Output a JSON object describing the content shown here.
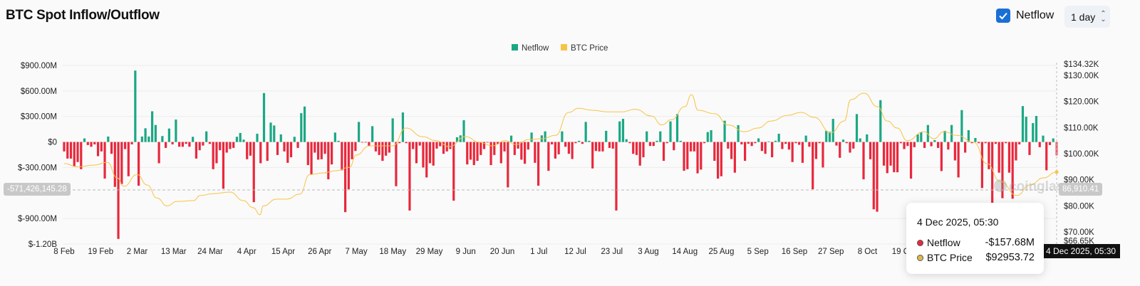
{
  "header": {
    "title": "BTC Spot Inflow/Outflow",
    "netflow_checkbox_label": "Netflow",
    "netflow_checked": true,
    "interval_value": "1 day"
  },
  "colors": {
    "inflow": "#1ba784",
    "outflow": "#e8283c",
    "price": "#f6c445",
    "checkbox": "#1a6fd6"
  },
  "watermark": "coinglass",
  "crosshair": {
    "left_value": "-571,426,145.28",
    "right_value": "86,910.41",
    "x_value": "4 Dec 2025, 05:30"
  },
  "tooltip": {
    "date": "4 Dec 2025, 05:30",
    "rows": [
      {
        "label": "Netflow",
        "value": "-$157.68M",
        "color": "#e8283c"
      },
      {
        "label": "BTC Price",
        "value": "$92953.72",
        "color": "#e0b94a"
      }
    ]
  },
  "chart_data": {
    "type": "bar+line",
    "legend": [
      {
        "name": "Netflow",
        "color": "#1ba784"
      },
      {
        "name": "BTC Price",
        "color": "#f6c445"
      }
    ],
    "legend_position": "top-center",
    "grid": true,
    "x_range": [
      "2025-02-08",
      "2025-12-04"
    ],
    "x_tick_labels": [
      "8 Feb",
      "19 Feb",
      "2 Mar",
      "13 Mar",
      "24 Mar",
      "4 Apr",
      "15 Apr",
      "26 Apr",
      "7 May",
      "18 May",
      "29 May",
      "9 Jun",
      "20 Jun",
      "1 Jul",
      "12 Jul",
      "23 Jul",
      "3 Aug",
      "14 Aug",
      "25 Aug",
      "5 Sep",
      "16 Sep",
      "27 Sep",
      "8 Oct",
      "19 Oct"
    ],
    "y_left": {
      "unit": "USD millions",
      "range": [
        -1200,
        900
      ],
      "ticks": [
        900,
        600,
        300,
        0,
        -300,
        -900,
        -1200
      ],
      "tick_labels": [
        "$900.00M",
        "$600.00M",
        "$300.00M",
        "$0",
        "$-300.00M",
        "$-900.00M",
        "$-1.20B"
      ]
    },
    "y_right": {
      "unit": "USD thousands",
      "range": [
        66.65,
        134.32
      ],
      "ticks": [
        134.32,
        130,
        120,
        110,
        100,
        90,
        80,
        70,
        66.65
      ],
      "tick_labels": [
        "$134.32K",
        "$130.00K",
        "$120.00K",
        "$110.00K",
        "$100.00K",
        "$90.00K",
        "$80.00K",
        "$70.00K",
        "$66.65K"
      ]
    },
    "netflow_series": {
      "name": "Netflow",
      "unit": "USD millions",
      "values": [
        -111,
        -195,
        -195,
        -290,
        -236,
        -320,
        42,
        -36,
        -56,
        -28,
        -167,
        -111,
        -430,
        64,
        -139,
        -528,
        -1140,
        -495,
        -83,
        -403,
        -28,
        840,
        -514,
        64,
        161,
        64,
        361,
        200,
        -250,
        70,
        -70,
        158,
        -28,
        264,
        -56,
        -56,
        -22,
        -56,
        61,
        -195,
        -97,
        -42,
        125,
        -22,
        -320,
        -250,
        -97,
        -550,
        -125,
        -83,
        -70,
        61,
        106,
        28,
        -203,
        -161,
        -708,
        97,
        -250,
        575,
        -222,
        228,
        194,
        -153,
        89,
        -111,
        -245,
        -180,
        61,
        -70,
        339,
        417,
        -272,
        -383,
        -125,
        -208,
        -203,
        -139,
        -439,
        -264,
        111,
        14,
        -333,
        -825,
        -556,
        -203,
        -106,
        236,
        -6,
        -6,
        -50,
        186,
        -111,
        -153,
        -222,
        -161,
        -125,
        278,
        -520,
        -14,
        347,
        -14,
        -806,
        -83,
        -250,
        -42,
        -300,
        -417,
        -250,
        -278,
        -78,
        -50,
        -139,
        -111,
        -83,
        -690,
        56,
        78,
        256,
        -264,
        -208,
        -272,
        -222,
        -153,
        -83,
        -6,
        -272,
        -153,
        -22,
        -250,
        -111,
        -534,
        75,
        -153,
        -78,
        -208,
        -256,
        -89,
        111,
        -245,
        -514,
        78,
        125,
        -339,
        -28,
        -195,
        -145,
        125,
        -56,
        -139,
        -200,
        -14,
        14,
        -22,
        236,
        14,
        -311,
        -106,
        -111,
        -111,
        131,
        -70,
        -78,
        -806,
        242,
        272,
        33,
        -14,
        -139,
        -153,
        -278,
        -180,
        125,
        -47,
        -47,
        14,
        125,
        -222,
        -14,
        242,
        -97,
        328,
        14,
        -339,
        -320,
        -111,
        -111,
        -369,
        -325,
        -14,
        117,
        139,
        -222,
        -431,
        -403,
        250,
        -78,
        -200,
        -361,
        198,
        -28,
        -222,
        -20,
        -47,
        -14,
        42,
        -106,
        -139,
        6,
        -180,
        14,
        97,
        -83,
        -22,
        -89,
        -236,
        -14,
        -33,
        -245,
        75,
        -56,
        -556,
        -200,
        -14,
        -300,
        131,
        120,
        272,
        -42,
        -186,
        28,
        -14,
        -125,
        -78,
        328,
        42,
        -439,
        89,
        -203,
        -792,
        -820,
        492,
        -278,
        -367,
        -278,
        -356,
        -356,
        -14,
        -83,
        -47,
        -431,
        -61,
        89,
        117,
        -70,
        200,
        -50,
        22,
        -70,
        -342,
        131,
        -89,
        200,
        -217,
        -417,
        375,
        -125,
        139,
        -14,
        47,
        -14,
        -542,
        -14,
        -320,
        -734,
        -22,
        -361,
        -661,
        -14,
        -361,
        -667,
        -217,
        -28,
        422,
        297,
        -153,
        222,
        306,
        -61,
        75,
        -333,
        -36,
        42,
        -157.68
      ]
    },
    "price_series": {
      "name": "BTC Price",
      "unit": "USD thousands",
      "points": [
        [
          "2025-02-08",
          96.2
        ],
        [
          "2025-02-12",
          95
        ],
        [
          "2025-02-17",
          95.6
        ],
        [
          "2025-02-21",
          96.7
        ],
        [
          "2025-02-24",
          90.7
        ],
        [
          "2025-02-26",
          87.5
        ],
        [
          "2025-03-02",
          92
        ],
        [
          "2025-03-05",
          88
        ],
        [
          "2025-03-08",
          83
        ],
        [
          "2025-03-11",
          80
        ],
        [
          "2025-03-14",
          81.7
        ],
        [
          "2025-03-19",
          82
        ],
        [
          "2025-03-21",
          84
        ],
        [
          "2025-03-25",
          84.7
        ],
        [
          "2025-03-30",
          85.3
        ],
        [
          "2025-04-03",
          82
        ],
        [
          "2025-04-06",
          79.3
        ],
        [
          "2025-04-08",
          76.6
        ],
        [
          "2025-04-09",
          80
        ],
        [
          "2025-04-13",
          82.6
        ],
        [
          "2025-04-16",
          82.6
        ],
        [
          "2025-04-20",
          84.5
        ],
        [
          "2025-04-23",
          92
        ],
        [
          "2025-04-27",
          92.6
        ],
        [
          "2025-05-01",
          93.5
        ],
        [
          "2025-05-05",
          94.8
        ],
        [
          "2025-05-07",
          99.5
        ],
        [
          "2025-05-11",
          103
        ],
        [
          "2025-05-14",
          103
        ],
        [
          "2025-05-18",
          103
        ],
        [
          "2025-05-22",
          109.8
        ],
        [
          "2025-05-27",
          106.5
        ],
        [
          "2025-05-31",
          105
        ],
        [
          "2025-06-04",
          102.7
        ],
        [
          "2025-06-09",
          106.5
        ],
        [
          "2025-06-13",
          104.4
        ],
        [
          "2025-06-17",
          103
        ],
        [
          "2025-06-21",
          105
        ],
        [
          "2025-06-24",
          103.5
        ],
        [
          "2025-06-28",
          105.4
        ],
        [
          "2025-07-02",
          105.7
        ],
        [
          "2025-07-06",
          107
        ],
        [
          "2025-07-10",
          115.8
        ],
        [
          "2025-07-13",
          117.4
        ],
        [
          "2025-07-17",
          116.6
        ],
        [
          "2025-07-22",
          116
        ],
        [
          "2025-07-26",
          116
        ],
        [
          "2025-07-30",
          117
        ],
        [
          "2025-08-04",
          114.4
        ],
        [
          "2025-08-07",
          111
        ],
        [
          "2025-08-10",
          113
        ],
        [
          "2025-08-14",
          118
        ],
        [
          "2025-08-16",
          122.6
        ],
        [
          "2025-08-18",
          116.6
        ],
        [
          "2025-08-23",
          115.3
        ],
        [
          "2025-08-27",
          111
        ],
        [
          "2025-09-01",
          108.4
        ],
        [
          "2025-09-05",
          109.8
        ],
        [
          "2025-09-09",
          112.5
        ],
        [
          "2025-09-14",
          114.7
        ],
        [
          "2025-09-18",
          115.8
        ],
        [
          "2025-09-22",
          113.9
        ],
        [
          "2025-09-27",
          108
        ],
        [
          "2025-10-01",
          112.5
        ],
        [
          "2025-10-03",
          120.7
        ],
        [
          "2025-10-07",
          123.2
        ],
        [
          "2025-10-11",
          118
        ],
        [
          "2025-10-14",
          112.5
        ],
        [
          "2025-10-17",
          109.8
        ],
        [
          "2025-10-20",
          105
        ],
        [
          "2025-10-25",
          108.4
        ],
        [
          "2025-10-28",
          105.7
        ],
        [
          "2025-10-31",
          108.4
        ],
        [
          "2025-11-04",
          107
        ],
        [
          "2025-11-09",
          104.4
        ],
        [
          "2025-11-13",
          96.2
        ],
        [
          "2025-11-17",
          89.4
        ],
        [
          "2025-11-22",
          84
        ],
        [
          "2025-11-26",
          88
        ],
        [
          "2025-11-30",
          90.7
        ],
        [
          "2025-12-04",
          92.95
        ]
      ]
    }
  }
}
